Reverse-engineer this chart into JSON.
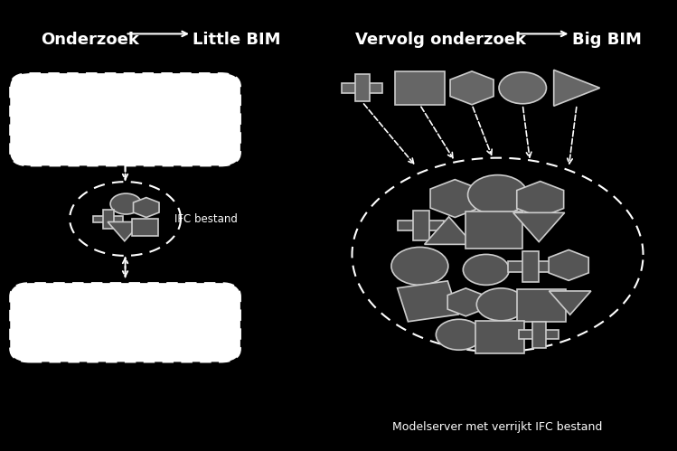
{
  "bg_color": "#000000",
  "text_color": "#ffffff",
  "shape_fill": "#555555",
  "shape_edge": "#cccccc",
  "left_title1": "Onderzoek",
  "left_title2": "Little BIM",
  "right_title1": "Vervolg onderzoek",
  "right_title2": "Big BIM",
  "ifc_label": "IFC bestand",
  "model_label": "Modelserver met verrijkt IFC bestand"
}
